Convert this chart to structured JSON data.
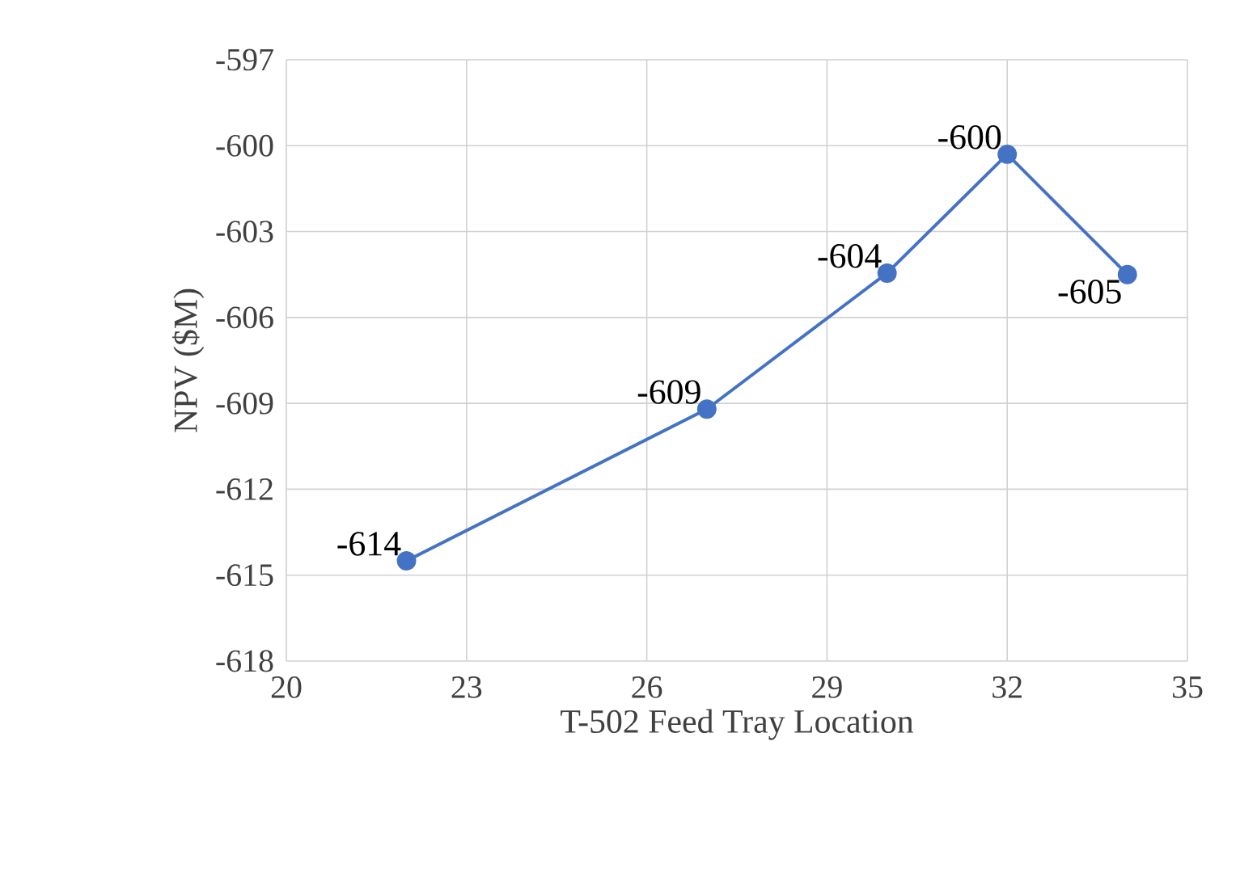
{
  "chart_data": {
    "type": "line",
    "xlabel": "T-502 Feed Tray Location",
    "ylabel": "NPV ($M)",
    "x": [
      22,
      27,
      30,
      32,
      34
    ],
    "series": [
      {
        "color": "#4472c4",
        "values": [
          -614.5,
          -609.2,
          -604.45,
          -600.3,
          -604.5
        ],
        "value_labels": [
          "-614",
          "-609",
          "-604",
          "-600",
          "-605"
        ]
      }
    ],
    "xlim": [
      20,
      35
    ],
    "xticks": [
      20,
      23,
      26,
      29,
      32,
      35
    ],
    "ylim": [
      -618,
      -597
    ],
    "yticks": [
      -618,
      -615,
      -612,
      -609,
      -606,
      -603,
      -600,
      -597
    ],
    "grid": true,
    "marker": "circle",
    "line_style": "solid"
  }
}
